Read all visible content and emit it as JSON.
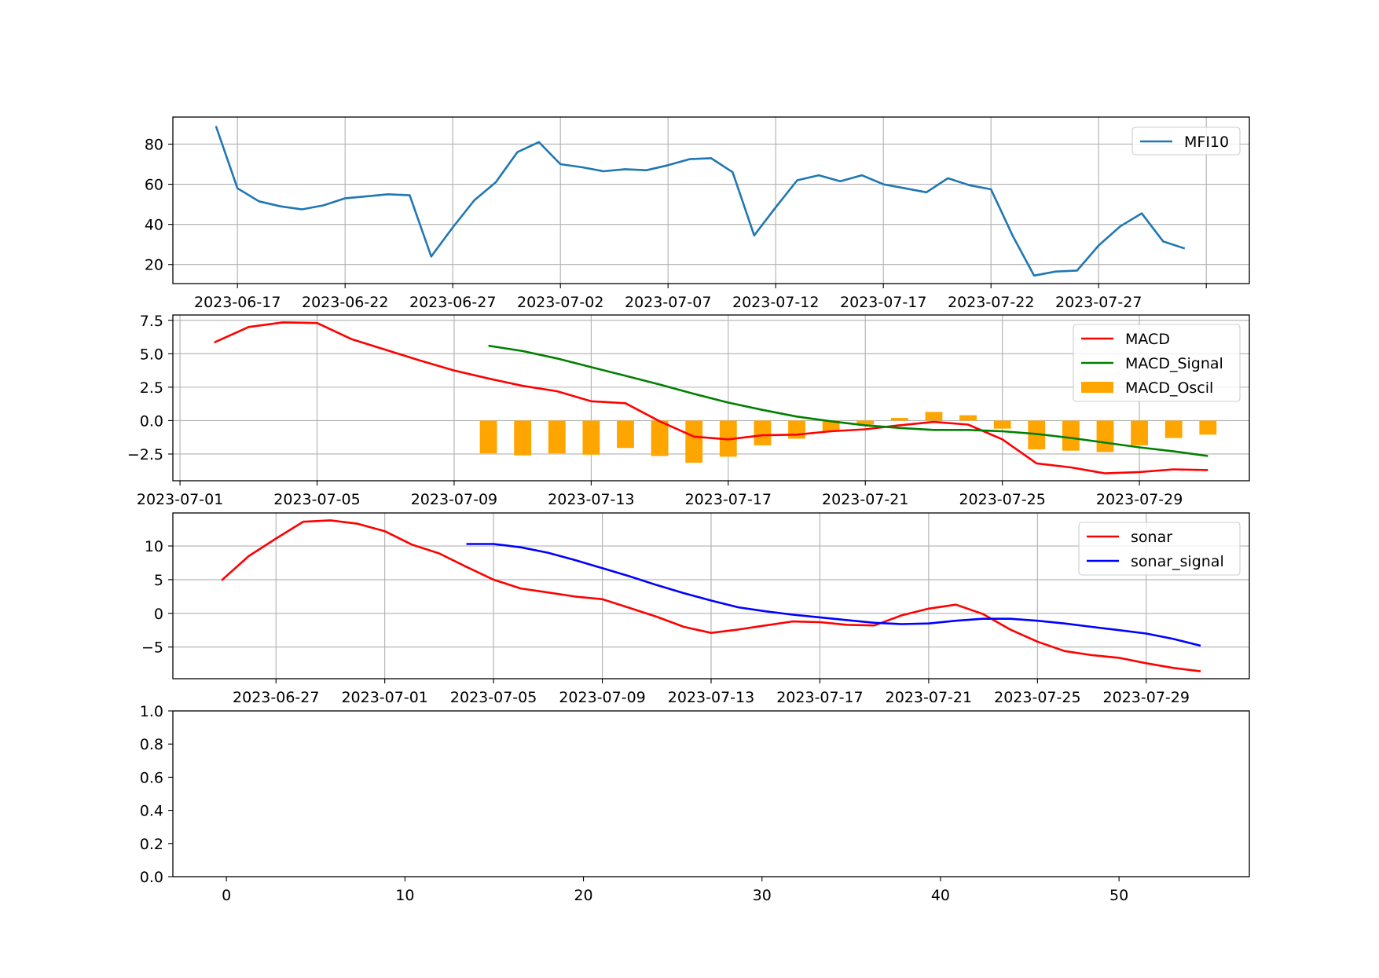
{
  "chart_data": [
    {
      "type": "line",
      "x_type": "date",
      "x": [
        "2023-06-16",
        "2023-06-17",
        "2023-06-18",
        "2023-06-19",
        "2023-06-20",
        "2023-06-21",
        "2023-06-22",
        "2023-06-23",
        "2023-06-24",
        "2023-06-25",
        "2023-06-26",
        "2023-06-27",
        "2023-06-28",
        "2023-06-29",
        "2023-06-30",
        "2023-07-01",
        "2023-07-02",
        "2023-07-03",
        "2023-07-04",
        "2023-07-05",
        "2023-07-06",
        "2023-07-07",
        "2023-07-08",
        "2023-07-09",
        "2023-07-10",
        "2023-07-11",
        "2023-07-12",
        "2023-07-13",
        "2023-07-14",
        "2023-07-15",
        "2023-07-16",
        "2023-07-17",
        "2023-07-18",
        "2023-07-19",
        "2023-07-20",
        "2023-07-21",
        "2023-07-22",
        "2023-07-23",
        "2023-07-24",
        "2023-07-25",
        "2023-07-26",
        "2023-07-27",
        "2023-07-28",
        "2023-07-29",
        "2023-07-30",
        "2023-07-31"
      ],
      "series": [
        {
          "name": "MFI10",
          "color": "#1f77b4",
          "values": [
            89,
            58,
            51.5,
            49,
            47.5,
            49.5,
            53,
            54,
            55,
            54.5,
            24,
            38.5,
            52,
            61,
            76,
            81,
            70,
            68.5,
            66.5,
            67.5,
            67,
            69.5,
            72.5,
            73,
            66,
            34.5,
            48.5,
            62,
            64.5,
            61.5,
            64.5,
            60,
            58,
            56,
            63,
            59.5,
            57.5,
            34.5,
            14.5,
            16.5,
            17,
            29.5,
            39,
            45.5,
            31.5,
            28
          ]
        }
      ],
      "xlim": [
        "2023-06-14",
        "2023-08-03"
      ],
      "ylim": [
        10.5,
        93.5
      ],
      "x_ticks": [
        "2023-06-17",
        "2023-06-22",
        "2023-06-27",
        "2023-07-02",
        "2023-07-07",
        "2023-07-12",
        "2023-07-17",
        "2023-07-22",
        "2023-07-27",
        "2023-08-01"
      ],
      "x_tick_labels": [
        "2023-06-17",
        "2023-06-22",
        "2023-06-27",
        "2023-07-02",
        "2023-07-07",
        "2023-07-12",
        "2023-07-17",
        "2023-07-22",
        "2023-07-27",
        ""
      ],
      "y_ticks": [
        20,
        40,
        60,
        80
      ],
      "grid": true,
      "legend": "upper right"
    },
    {
      "type": "line",
      "x_type": "date",
      "x": [
        "2023-07-02",
        "2023-07-03",
        "2023-07-04",
        "2023-07-05",
        "2023-07-06",
        "2023-07-07",
        "2023-07-08",
        "2023-07-09",
        "2023-07-10",
        "2023-07-11",
        "2023-07-12",
        "2023-07-13",
        "2023-07-14",
        "2023-07-15",
        "2023-07-16",
        "2023-07-17",
        "2023-07-18",
        "2023-07-19",
        "2023-07-20",
        "2023-07-21",
        "2023-07-22",
        "2023-07-23",
        "2023-07-24",
        "2023-07-25",
        "2023-07-26",
        "2023-07-27",
        "2023-07-28",
        "2023-07-29",
        "2023-07-30",
        "2023-07-31"
      ],
      "series": [
        {
          "name": "MACD",
          "color": "#ff0000",
          "kind": "line",
          "values": [
            5.85,
            7.0,
            7.35,
            7.3,
            6.1,
            5.3,
            4.5,
            3.75,
            3.15,
            2.6,
            2.2,
            1.45,
            1.3,
            -0.05,
            -1.2,
            -1.4,
            -1.1,
            -1.05,
            -0.8,
            -0.65,
            -0.35,
            -0.1,
            -0.3,
            -1.4,
            -3.2,
            -3.5,
            -3.95,
            -3.85,
            -3.65,
            -3.7
          ]
        },
        {
          "name": "MACD_Signal",
          "color": "#008000",
          "kind": "line",
          "values": [
            null,
            null,
            null,
            null,
            null,
            null,
            null,
            null,
            5.6,
            5.2,
            4.65,
            4.0,
            3.35,
            2.7,
            2.0,
            1.35,
            0.8,
            0.3,
            -0.05,
            -0.35,
            -0.55,
            -0.7,
            -0.7,
            -0.8,
            -1.0,
            -1.3,
            -1.65,
            -2.0,
            -2.3,
            -2.65
          ]
        },
        {
          "name": "MACD_Oscil",
          "color": "#ffa500",
          "kind": "bar",
          "values": [
            null,
            null,
            null,
            null,
            null,
            null,
            null,
            null,
            -2.45,
            -2.6,
            -2.45,
            -2.55,
            -2.05,
            -2.65,
            -3.15,
            -2.7,
            -1.85,
            -1.35,
            -0.8,
            -0.3,
            0.2,
            0.65,
            0.4,
            -0.6,
            -2.15,
            -2.25,
            -2.35,
            -1.85,
            -1.3,
            -1.05
          ]
        }
      ],
      "xlim": [
        "2023-06-30T19:00",
        "2023-08-01T05:00"
      ],
      "ylim": [
        -4.5,
        7.9
      ],
      "x_ticks": [
        "2023-07-01",
        "2023-07-05",
        "2023-07-09",
        "2023-07-13",
        "2023-07-17",
        "2023-07-21",
        "2023-07-25",
        "2023-07-29"
      ],
      "y_ticks": [
        -2.5,
        0.0,
        2.5,
        5.0,
        7.5
      ],
      "y_tick_labels": [
        "−2.5",
        "0.0",
        "2.5",
        "5.0",
        "7.5"
      ],
      "grid": true,
      "legend": "upper right"
    },
    {
      "type": "line",
      "x_type": "date",
      "x": [
        "2023-06-25",
        "2023-06-26",
        "2023-06-27",
        "2023-06-28",
        "2023-06-29",
        "2023-06-30",
        "2023-07-01",
        "2023-07-02",
        "2023-07-03",
        "2023-07-04",
        "2023-07-05",
        "2023-07-06",
        "2023-07-07",
        "2023-07-08",
        "2023-07-09",
        "2023-07-10",
        "2023-07-11",
        "2023-07-12",
        "2023-07-13",
        "2023-07-14",
        "2023-07-15",
        "2023-07-16",
        "2023-07-17",
        "2023-07-18",
        "2023-07-19",
        "2023-07-20",
        "2023-07-21",
        "2023-07-22",
        "2023-07-23",
        "2023-07-24",
        "2023-07-25",
        "2023-07-26",
        "2023-07-27",
        "2023-07-28",
        "2023-07-29",
        "2023-07-30",
        "2023-07-31"
      ],
      "series": [
        {
          "name": "sonar",
          "color": "#ff0000",
          "values": [
            4.9,
            8.5,
            11.1,
            13.6,
            13.8,
            13.3,
            12.2,
            10.2,
            8.9,
            6.9,
            5.0,
            3.7,
            3.1,
            2.5,
            2.1,
            0.8,
            -0.5,
            -2.0,
            -2.9,
            -2.4,
            -1.8,
            -1.2,
            -1.3,
            -1.7,
            -1.8,
            -0.3,
            0.7,
            1.3,
            -0.1,
            -2.4,
            -4.2,
            -5.6,
            -6.2,
            -6.6,
            -7.4,
            -8.1,
            -8.6
          ]
        },
        {
          "name": "sonar_signal",
          "color": "#0000ff",
          "values": [
            null,
            null,
            null,
            null,
            null,
            null,
            null,
            null,
            null,
            10.3,
            10.3,
            9.8,
            9.0,
            7.9,
            6.7,
            5.5,
            4.2,
            3.0,
            1.9,
            0.9,
            0.3,
            -0.2,
            -0.6,
            -1.0,
            -1.4,
            -1.6,
            -1.5,
            -1.1,
            -0.8,
            -0.8,
            -1.1,
            -1.5,
            -2.0,
            -2.5,
            -3.0,
            -3.8,
            -4.8
          ]
        }
      ],
      "xlim": [
        "2023-06-23T05:00",
        "2023-08-01T19:00"
      ],
      "ylim": [
        -9.7,
        14.9
      ],
      "x_ticks": [
        "2023-06-27",
        "2023-07-01",
        "2023-07-05",
        "2023-07-09",
        "2023-07-13",
        "2023-07-17",
        "2023-07-21",
        "2023-07-25",
        "2023-07-29"
      ],
      "y_ticks": [
        -5,
        0,
        5,
        10
      ],
      "y_tick_labels": [
        "−5",
        "0",
        "5",
        "10"
      ],
      "grid": true,
      "legend": "upper right"
    },
    {
      "type": "line",
      "series": [],
      "xlim": [
        -3,
        57.3
      ],
      "ylim": [
        0,
        1
      ],
      "x_ticks": [
        0,
        10,
        20,
        30,
        40,
        50
      ],
      "y_ticks": [
        0.0,
        0.2,
        0.4,
        0.6,
        0.8,
        1.0
      ],
      "y_tick_labels": [
        "0.0",
        "0.2",
        "0.4",
        "0.6",
        "0.8",
        "1.0"
      ],
      "grid": false
    }
  ]
}
